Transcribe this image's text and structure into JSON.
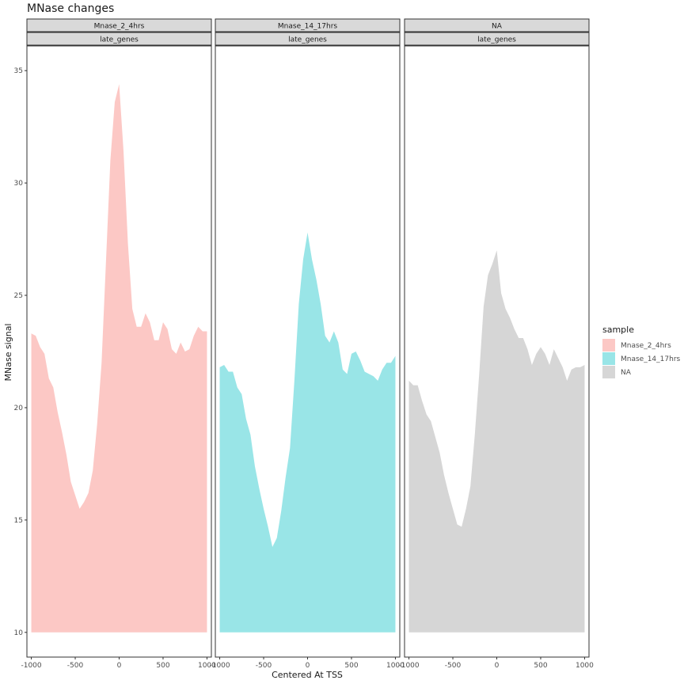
{
  "chart_data": {
    "type": "area",
    "title": "MNase changes",
    "xlabel": "Centered At TSS",
    "ylabel": "MNase signal",
    "xlim": [
      -1050,
      1050
    ],
    "ylim": [
      8.9,
      36.1
    ],
    "x_ticks": [
      -1000,
      -500,
      0,
      500,
      1000
    ],
    "x_tick_labels": [
      "-1000",
      "-500",
      "0",
      "500",
      "1000"
    ],
    "y_ticks": [
      10,
      15,
      20,
      25,
      30,
      35
    ],
    "y_tick_labels": [
      "10",
      "15",
      "20",
      "25",
      "30",
      "35"
    ],
    "area_baseline": 10,
    "grid": false,
    "legend": {
      "title": "sample",
      "placement": "right",
      "entries": [
        {
          "label": "Mnase_2_4hrs",
          "color": "#F8766D"
        },
        {
          "label": "Mnase_14_17hrs",
          "color": "#00BFC4"
        },
        {
          "label": "NA",
          "color": "#999999"
        }
      ]
    },
    "fill_opacity": 0.4,
    "x": [
      -1000,
      -950,
      -900,
      -850,
      -800,
      -750,
      -700,
      -650,
      -600,
      -550,
      -500,
      -450,
      -400,
      -350,
      -300,
      -250,
      -200,
      -150,
      -100,
      -50,
      0,
      50,
      100,
      150,
      200,
      250,
      300,
      350,
      400,
      450,
      500,
      550,
      600,
      650,
      700,
      750,
      800,
      850,
      900,
      950,
      1000
    ],
    "series": [
      {
        "name": "Mnase_2_4hrs",
        "strip_top": "Mnase_2_4hrs",
        "strip_bottom": "late_genes",
        "color": "#F8766D",
        "values": [
          23.3,
          23.2,
          22.7,
          22.4,
          21.3,
          20.9,
          19.8,
          18.9,
          17.9,
          16.7,
          16.1,
          15.5,
          15.8,
          16.2,
          17.2,
          19.3,
          22.0,
          26.5,
          31.0,
          33.6,
          34.4,
          31.4,
          27.3,
          24.4,
          23.6,
          23.6,
          24.2,
          23.8,
          23.0,
          23.0,
          23.8,
          23.5,
          22.6,
          22.4,
          22.9,
          22.5,
          22.6,
          23.2,
          23.6,
          23.4,
          23.4
        ]
      },
      {
        "name": "Mnase_14_17hrs",
        "strip_top": "Mnase_14_17hrs",
        "strip_bottom": "late_genes",
        "color": "#00BFC4",
        "values": [
          21.8,
          21.9,
          21.6,
          21.6,
          20.9,
          20.6,
          19.5,
          18.8,
          17.4,
          16.4,
          15.5,
          14.7,
          13.8,
          14.2,
          15.4,
          16.9,
          18.2,
          21.2,
          24.6,
          26.6,
          27.8,
          26.6,
          25.7,
          24.6,
          23.2,
          22.9,
          23.4,
          22.9,
          21.7,
          21.5,
          22.4,
          22.5,
          22.1,
          21.6,
          21.5,
          21.4,
          21.2,
          21.7,
          22.0,
          22.0,
          22.3
        ]
      },
      {
        "name": "NA",
        "strip_top": "NA",
        "strip_bottom": "late_genes",
        "color": "#999999",
        "values": [
          21.2,
          21.0,
          21.0,
          20.3,
          19.7,
          19.4,
          18.7,
          18.0,
          17.0,
          16.2,
          15.5,
          14.8,
          14.7,
          15.5,
          16.5,
          18.8,
          21.5,
          24.5,
          25.9,
          26.4,
          27.0,
          25.1,
          24.4,
          24.0,
          23.5,
          23.1,
          23.1,
          22.6,
          21.9,
          22.4,
          22.7,
          22.4,
          21.9,
          22.6,
          22.2,
          21.8,
          21.2,
          21.7,
          21.8,
          21.8,
          21.9
        ]
      }
    ]
  }
}
